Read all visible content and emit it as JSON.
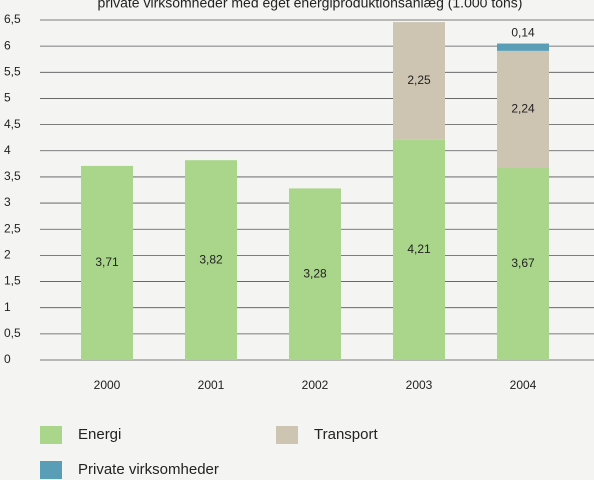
{
  "chart_data": {
    "type": "stacked-bar",
    "title": "private virksomheder med eget energiproduktionsanlæg (1.000 tons)",
    "categories": [
      "2000",
      "2001",
      "2002",
      "2003",
      "2004"
    ],
    "series": [
      {
        "name": "Energi",
        "color": "#a9d68b",
        "values": [
          3.71,
          3.82,
          3.28,
          4.21,
          3.67
        ],
        "value_labels": [
          "3,71",
          "3,82",
          "3,28",
          "4,21",
          "3,67"
        ]
      },
      {
        "name": "Transport",
        "color": "#cdc4b2",
        "values": [
          null,
          null,
          null,
          2.25,
          2.24
        ],
        "value_labels": [
          null,
          null,
          null,
          "2,25",
          "2,24"
        ]
      },
      {
        "name": "Private virksomheder",
        "color": "#5a9db6",
        "values": [
          null,
          null,
          null,
          null,
          0.14
        ],
        "value_labels": [
          null,
          null,
          null,
          null,
          "0,14"
        ]
      }
    ],
    "ylim": [
      0,
      6.5
    ],
    "yticks": [
      0,
      {
        "value": 0.5,
        "label": "0,5"
      },
      1,
      {
        "value": 1.5,
        "label": "1,5"
      },
      2,
      {
        "value": 2.5,
        "label": "2,5"
      },
      3,
      {
        "value": 3.5,
        "label": "3,5"
      },
      4,
      {
        "value": 4.5,
        "label": "4,5"
      },
      5,
      {
        "value": 5.5,
        "label": "5,5"
      },
      6,
      {
        "value": 6.5,
        "label": "6,5"
      }
    ],
    "grid": true
  }
}
